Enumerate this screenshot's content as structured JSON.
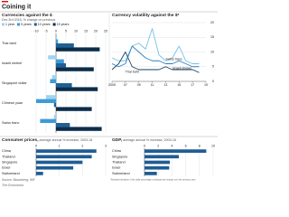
{
  "header": {
    "title": "Coining it"
  },
  "chart_data": [
    {
      "type": "hbar",
      "title": "Currencies against the $",
      "subtitle": "Dec 3rd 2018, % change on previous",
      "categories": [
        "Thai baht",
        "Israeli shekel",
        "Singapore dollar",
        "Chinese yuan",
        "Swiss franc"
      ],
      "series": [
        {
          "name": "1 year",
          "color": "#9fd3ee",
          "values": [
            0.5,
            -4,
            -2,
            -5,
            -1
          ]
        },
        {
          "name": "5 years",
          "color": "#3d9bd6",
          "values": [
            1,
            4,
            -3,
            -10,
            -8
          ]
        },
        {
          "name": "10 years",
          "color": "#1d6197",
          "values": [
            9,
            5,
            8,
            -1,
            7
          ]
        },
        {
          "name": "15 years",
          "color": "#0c2d4b",
          "values": [
            22,
            19,
            21,
            18,
            23
          ]
        }
      ],
      "xlim": [
        -10,
        25
      ],
      "xticks": [
        -10,
        -5,
        0,
        5,
        10,
        15,
        20,
        25
      ],
      "grid": true
    },
    {
      "type": "line",
      "title": "Currency volatility against the $*",
      "x": [
        2005,
        2006,
        2007,
        2008,
        2009,
        2010,
        2011,
        2012,
        2013,
        2014,
        2015,
        2016,
        2017,
        2018
      ],
      "series": [
        {
          "name": "Swiss franc",
          "color": "#76c0e6",
          "values": [
            8,
            7,
            7,
            12,
            13,
            11,
            18,
            9,
            7,
            8,
            12,
            7,
            6,
            6
          ]
        },
        {
          "name": "Thai baht",
          "color": "#1b3d5c",
          "values": [
            4,
            6,
            10,
            5,
            4,
            4,
            4,
            4,
            5,
            4,
            4,
            4,
            4,
            3
          ]
        },
        {
          "name": "Israeli shekel",
          "color": "#2a7fc3",
          "values": [
            6,
            5,
            6,
            12,
            10,
            8,
            7,
            7,
            6,
            6,
            7,
            6,
            5,
            5
          ]
        }
      ],
      "xlim": [
        2005,
        2019
      ],
      "xticks": [
        2005,
        {
          "value": 2007,
          "label": "07"
        },
        {
          "value": 2009,
          "label": "09"
        },
        {
          "value": 2011,
          "label": "11"
        },
        {
          "value": 2013,
          "label": "13"
        },
        {
          "value": 2015,
          "label": "15"
        },
        {
          "value": 2017,
          "label": "17"
        },
        {
          "value": 2019,
          "label": "19"
        }
      ],
      "ylim": [
        0,
        20
      ],
      "yticks": [
        0,
        5,
        10,
        15,
        20
      ],
      "grid": true
    },
    {
      "type": "hbar",
      "title": "Consumer prices,",
      "subtitle": "average annual % increase, 2003-18",
      "categories": [
        "China",
        "Thailand",
        "Singapore",
        "Israel",
        "Switzerland"
      ],
      "values": [
        2.6,
        2.4,
        2.0,
        1.6,
        0.3
      ],
      "color": "#1f5c94",
      "xlim": [
        0,
        3
      ],
      "xticks": [
        0,
        1,
        2,
        3
      ],
      "grid": true
    },
    {
      "type": "hbar",
      "title": "GDP,",
      "subtitle": "average annual % increase, 2003-18",
      "categories": [
        "China",
        "Singapore",
        "Thailand",
        "Israel",
        "Switzerland"
      ],
      "values": [
        9,
        5,
        3.7,
        3.6,
        1.8
      ],
      "color": "#1f5c94",
      "xlim": [
        0,
        10
      ],
      "xticks": [
        0,
        2,
        4,
        6,
        8,
        10
      ],
      "grid": true
    }
  ],
  "footer": {
    "source": "Source: Bloomberg; IMF",
    "note": "*Standard deviation of the daily percentage exchange-rate change over the previous year",
    "brand": "The Economist"
  }
}
